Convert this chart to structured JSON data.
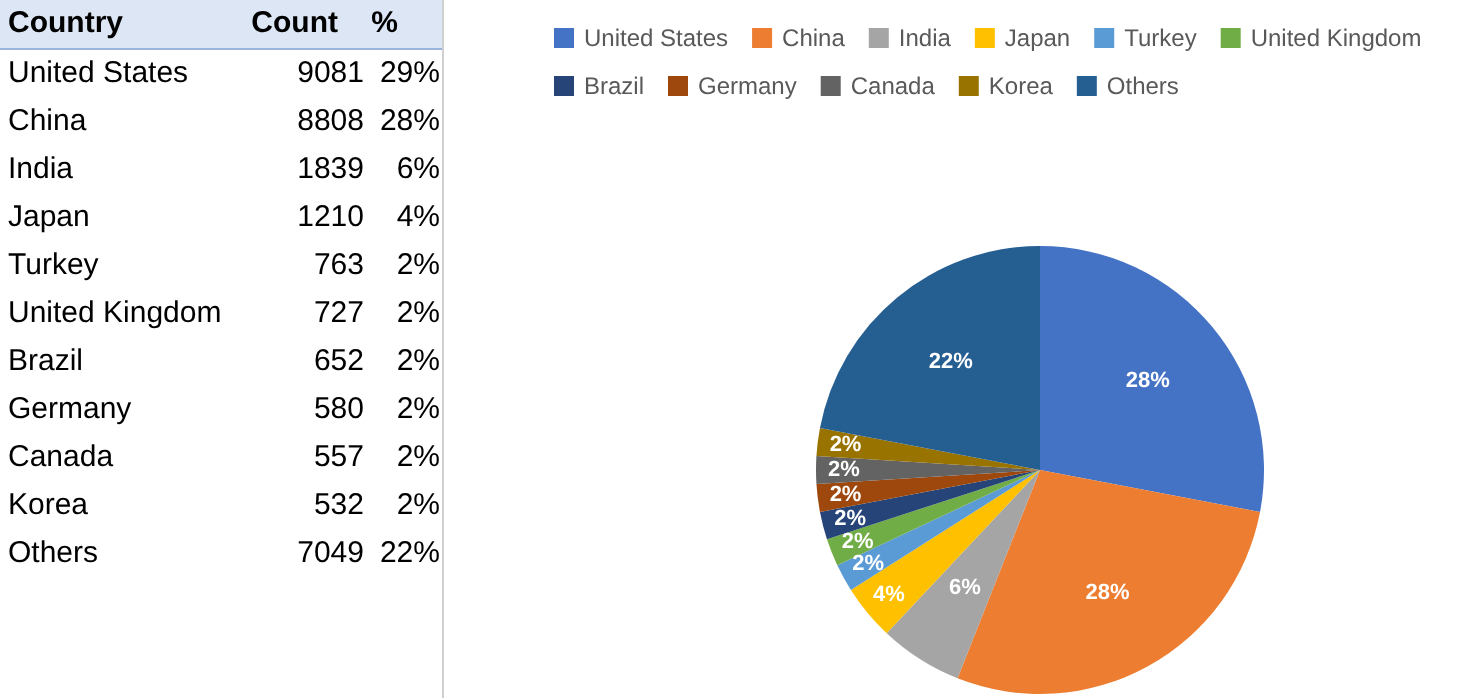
{
  "chart_data": [
    {
      "type": "other",
      "annotations": [
        "Country",
        "Count",
        "%",
        "United States",
        "9081",
        "29%",
        "China",
        "8808",
        "28%",
        "India",
        "1839",
        "6%",
        "Japan",
        "1210",
        "4%",
        "Turkey",
        "763",
        "2%",
        "United Kingdom",
        "727",
        "2%",
        "Brazil",
        "652",
        "2%",
        "Germany",
        "580",
        "2%",
        "Canada",
        "557",
        "2%",
        "Korea",
        "532",
        "2%",
        "Others",
        "7049",
        "22%"
      ]
    },
    {
      "type": "pie",
      "categories": [
        "United States",
        "China",
        "India",
        "Japan",
        "Turkey",
        "United Kingdom",
        "Brazil",
        "Germany",
        "Canada",
        "Korea",
        "Others"
      ],
      "values": [
        28,
        28,
        6,
        4,
        2,
        2,
        2,
        2,
        2,
        2,
        22
      ],
      "colors": [
        "#4472c4",
        "#ed7d31",
        "#a5a5a5",
        "#ffc000",
        "#5b9bd5",
        "#70ad47",
        "#264478",
        "#9e480e",
        "#636363",
        "#997300",
        "#255e91"
      ],
      "value_labels": [
        "28%",
        "28%",
        "6%",
        "4%",
        "2%",
        "2%",
        "2%",
        "2%",
        "2%",
        "2%",
        "22%"
      ],
      "legend": "top"
    }
  ]
}
